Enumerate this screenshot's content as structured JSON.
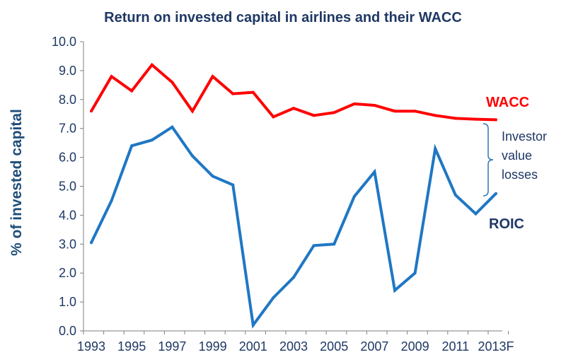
{
  "chart_data": {
    "type": "line",
    "title": "Return on invested capital in airlines and their WACC",
    "ylabel": "% of invested capital",
    "xlabel": "",
    "ylim": [
      0,
      10
    ],
    "yticks": [
      "0.0",
      "1.0",
      "2.0",
      "3.0",
      "4.0",
      "5.0",
      "6.0",
      "7.0",
      "8.0",
      "9.0",
      "10.0"
    ],
    "x": [
      "1993",
      "1994",
      "1995",
      "1996",
      "1997",
      "1998",
      "1999",
      "2000",
      "2001",
      "2002",
      "2003",
      "2004",
      "2005",
      "2006",
      "2007",
      "2008",
      "2009",
      "2010",
      "2011",
      "2012",
      "2013F"
    ],
    "xtick_labels": [
      "1993",
      "1995",
      "1997",
      "1999",
      "2001",
      "2003",
      "2005",
      "2007",
      "2009",
      "2011",
      "2013F"
    ],
    "grid": false,
    "series": [
      {
        "name": "WACC",
        "color": "#ff0000",
        "values": [
          7.6,
          8.8,
          8.3,
          9.2,
          8.6,
          7.6,
          8.8,
          8.2,
          8.25,
          7.4,
          7.7,
          7.45,
          7.55,
          7.85,
          7.8,
          7.6,
          7.6,
          7.45,
          7.35,
          7.32,
          7.3
        ]
      },
      {
        "name": "ROIC",
        "color": "#1f77c4",
        "values": [
          3.05,
          4.5,
          6.4,
          6.6,
          7.05,
          6.05,
          5.35,
          5.05,
          0.2,
          1.15,
          1.85,
          2.95,
          3.0,
          4.65,
          5.5,
          1.4,
          2.0,
          6.3,
          4.7,
          4.05,
          4.75
        ]
      }
    ],
    "annotations": [
      {
        "text_lines": [
          "Investor",
          "value",
          "losses"
        ]
      }
    ]
  }
}
